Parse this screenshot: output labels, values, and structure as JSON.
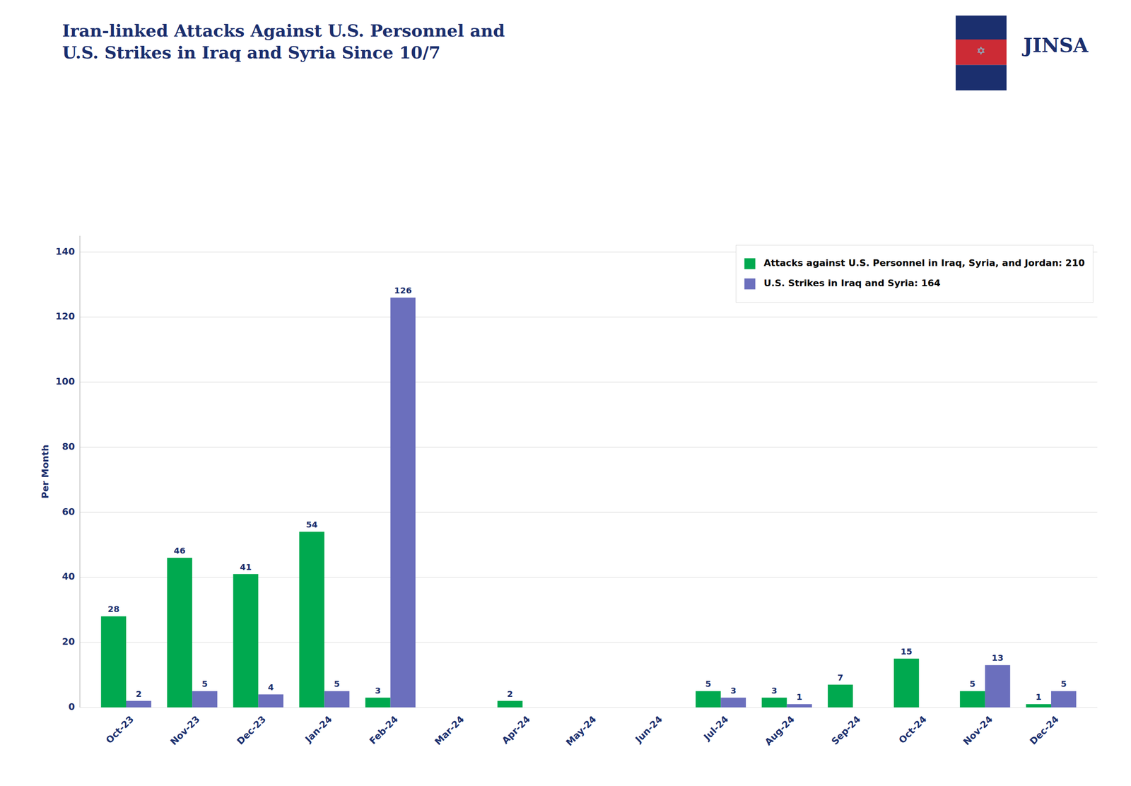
{
  "chart_data": {
    "type": "bar",
    "title": "Iran-linked Attacks Against U.S. Personnel and\nU.S. Strikes in Iraq and Syria Since 10/7",
    "y_label": "Per Month",
    "annotations": [
      "✡",
      "JINSA"
    ],
    "categories": [
      "Oct-23",
      "Nov-23",
      "Dec-23",
      "Jan-24",
      "Feb-24",
      "Mar-24",
      "Apr-24",
      "May-24",
      "Jun-24",
      "Jul-24",
      "Aug-24",
      "Sep-24",
      "Oct-24",
      "Nov-24",
      "Dec-24"
    ],
    "series": [
      {
        "name": "Attacks against U.S. Personnel in Iraq, Syria, and Jordan: 210",
        "color": "#00A94F",
        "values": [
          28,
          46,
          41,
          54,
          3,
          0,
          2,
          0,
          0,
          5,
          3,
          7,
          15,
          5,
          1
        ],
        "value_labels": [
          "28",
          "46",
          "41",
          "54",
          "3",
          null,
          "2",
          null,
          null,
          "5",
          "3",
          "7",
          "15",
          "5",
          "1"
        ]
      },
      {
        "name": "U.S. Strikes in Iraq and Syria: 164",
        "color": "#6B6FBD",
        "values": [
          2,
          5,
          4,
          5,
          126,
          0,
          0,
          0,
          0,
          3,
          1,
          0,
          0,
          13,
          5
        ],
        "value_labels": [
          "2",
          "5",
          "4",
          "5",
          "126",
          null,
          null,
          null,
          null,
          "3",
          "1",
          null,
          null,
          "13",
          "5"
        ]
      }
    ],
    "ylim": [
      0,
      145
    ],
    "yticks": [
      0,
      20,
      40,
      60,
      80,
      100,
      120,
      140
    ],
    "grid": true,
    "legend": "upper right",
    "data_labels": true
  }
}
